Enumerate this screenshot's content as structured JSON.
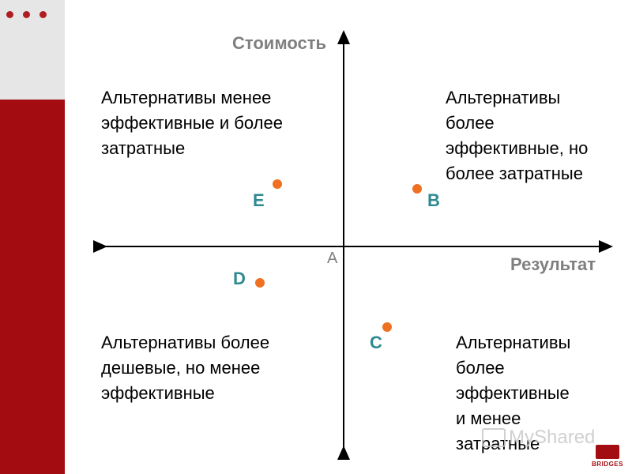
{
  "axes": {
    "y_label": "Стоимость",
    "x_label": "Результат",
    "origin_label": "A"
  },
  "quadrants": {
    "top_left": [
      "Альтернативы менее",
      "эффективные и более",
      "затратные"
    ],
    "top_right": [
      "Альтернативы",
      "более",
      "эффективные, но",
      "более затратные"
    ],
    "bottom_left": [
      "Альтернативы более",
      "дешевые, но менее",
      "эффективные"
    ],
    "bottom_right": [
      "Альтернативы",
      "более",
      "эффективные",
      "и менее",
      "затратные"
    ]
  },
  "points": [
    {
      "label": "E",
      "color": "#f07022"
    },
    {
      "label": "B",
      "color": "#f07022"
    },
    {
      "label": "D",
      "color": "#f07022"
    },
    {
      "label": "C",
      "color": "#f07022"
    }
  ],
  "colors": {
    "sidebar_red": "#a30d11",
    "sidebar_gray": "#e6e6e6",
    "point_orange": "#f07022",
    "point_label_teal": "#2e8a8f",
    "axis_label_gray": "#7f7f7f"
  },
  "watermark": {
    "text": "MyShared",
    "brand": "BRIDGES"
  }
}
